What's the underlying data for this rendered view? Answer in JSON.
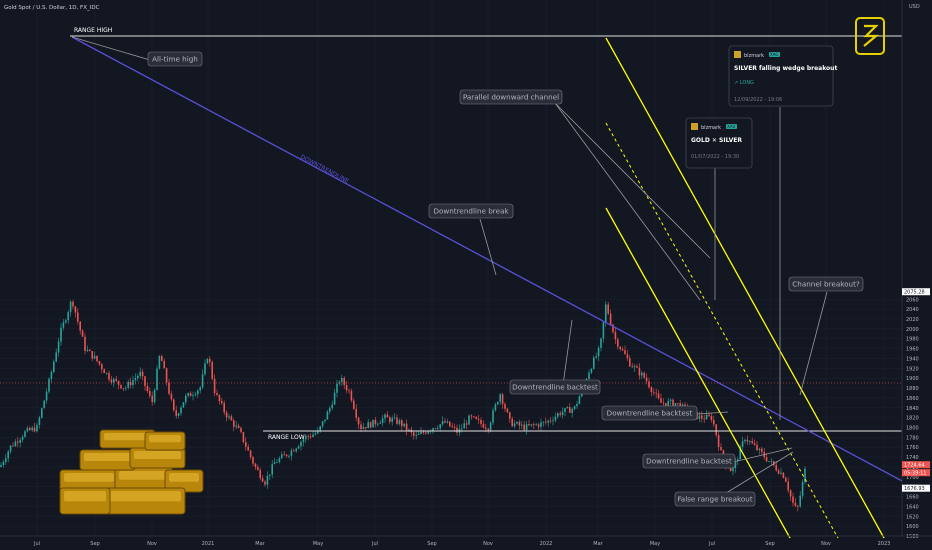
{
  "header": {
    "symbol_title": "Gold Spot / U.S. Dollar, 1D, FX_IDC"
  },
  "chart_data": {
    "type": "candlestick",
    "currency": "USD",
    "ylim": [
      1570,
      2090
    ],
    "y_ticks": [
      1580,
      1600,
      1620,
      1640,
      1660,
      1680,
      1700,
      1720,
      1740,
      1760,
      1780,
      1800,
      1820,
      1840,
      1860,
      1880,
      1900,
      1920,
      1940,
      1960,
      1980,
      2000,
      2020,
      2040,
      2060
    ],
    "x_ticks": [
      "Jul",
      "Sep",
      "Nov",
      "2021",
      "Mar",
      "May",
      "Jul",
      "Sep",
      "Nov",
      "2022",
      "Mar",
      "May",
      "Jul",
      "Sep",
      "Nov",
      "2023"
    ],
    "price_markers": [
      {
        "label": "2075.28",
        "value": 2075.3,
        "color": "#ffffff"
      },
      {
        "label": "1724.64",
        "value": 1724.6,
        "color": "#ef5350"
      },
      {
        "label": "1676.93",
        "value": 1676.9,
        "color": "#ffffff"
      }
    ],
    "countdown": "05:39:11",
    "levels": [
      {
        "name": "RANGE HIGH",
        "value": 2075
      },
      {
        "name": "RANGE LOW",
        "value": 1677
      }
    ],
    "trendline_label": "DOWNTRENDLINE",
    "annotations": [
      "All-time high",
      "Parallel downward channel",
      "Downtrendline break",
      "Downtrendline backtest",
      "Downtrendline backtest",
      "Downtrendline backtest",
      "Channel breakout?",
      "False range breakout"
    ],
    "ideas": [
      {
        "author": "blzmark",
        "badge": "XAG",
        "title": "SILVER falling wedge breakout",
        "tag": "LONG",
        "date": "12/09/2022 - 19:06"
      },
      {
        "author": "blzmark",
        "badge": "XAU",
        "title": "GOLD ✕ SILVER",
        "date": "01/07/2022 - 19:30"
      }
    ],
    "colors": {
      "up": "#26a69a",
      "down": "#ef5350",
      "channel": "#ffff00",
      "trend": "#5b4fd6",
      "level": "#e0e0e0",
      "bg": "#131722"
    }
  }
}
